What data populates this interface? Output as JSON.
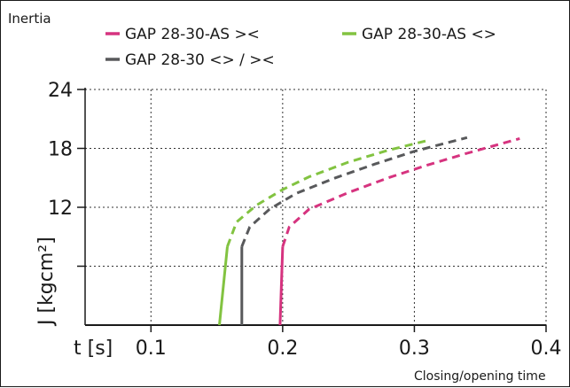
{
  "chart_data": {
    "type": "line",
    "title": "Inertia",
    "xlabel_prefix": "t [s]",
    "xlabel": "Closing/opening time",
    "ylabel": "J [kgcm²]",
    "xlim": [
      0.05,
      0.4
    ],
    "ylim": [
      0,
      24
    ],
    "x_ticks": [
      0.1,
      0.2,
      0.3,
      0.4
    ],
    "x_tick_labels": [
      "0.1",
      "0.2",
      "0.3",
      "0.4"
    ],
    "y_ticks": [
      6,
      12,
      18,
      24
    ],
    "y_tick_labels": [
      "",
      "12",
      "18",
      "24"
    ],
    "grid": true,
    "series": [
      {
        "name": "GAP 28-30-AS ><",
        "color": "#d6337f",
        "solid": [
          [
            0.198,
            0
          ],
          [
            0.2,
            8.0
          ]
        ],
        "dashed": [
          [
            0.2,
            8.0
          ],
          [
            0.205,
            10.0
          ],
          [
            0.22,
            11.8
          ],
          [
            0.25,
            13.5
          ],
          [
            0.28,
            15.0
          ],
          [
            0.31,
            16.3
          ],
          [
            0.34,
            17.5
          ],
          [
            0.38,
            19.0
          ]
        ]
      },
      {
        "name": "GAP 28-30-AS <>",
        "color": "#82c341",
        "solid": [
          [
            0.152,
            0
          ],
          [
            0.158,
            8.0
          ]
        ],
        "dashed": [
          [
            0.158,
            8.0
          ],
          [
            0.165,
            10.5
          ],
          [
            0.18,
            12.2
          ],
          [
            0.2,
            13.8
          ],
          [
            0.22,
            15.1
          ],
          [
            0.25,
            16.6
          ],
          [
            0.28,
            17.8
          ],
          [
            0.31,
            18.8
          ]
        ]
      },
      {
        "name": "GAP 28-30 <> / ><",
        "color": "#58595b",
        "solid": [
          [
            0.169,
            0
          ],
          [
            0.169,
            8.0
          ]
        ],
        "dashed": [
          [
            0.169,
            8.0
          ],
          [
            0.175,
            10.0
          ],
          [
            0.19,
            11.8
          ],
          [
            0.21,
            13.4
          ],
          [
            0.24,
            15.0
          ],
          [
            0.27,
            16.4
          ],
          [
            0.3,
            17.7
          ],
          [
            0.34,
            19.1
          ]
        ]
      }
    ]
  }
}
